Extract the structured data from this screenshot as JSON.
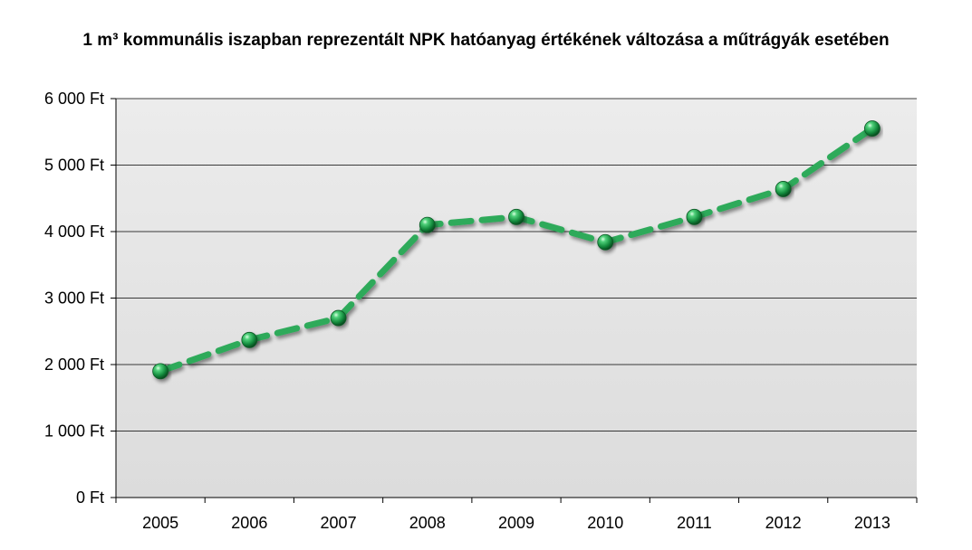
{
  "chart_data": {
    "type": "line",
    "title": "1 m³ kommunális iszapban reprezentált NPK hatóanyag értékének változása a műtrágyák esetében",
    "xlabel": "",
    "ylabel": "",
    "categories": [
      "2005",
      "2006",
      "2007",
      "2008",
      "2009",
      "2010",
      "2011",
      "2012",
      "2013"
    ],
    "series": [
      {
        "values": [
          1900,
          2370,
          2700,
          4100,
          4220,
          3840,
          4220,
          4640,
          5550
        ],
        "color": "#2daa5a",
        "line_style": "dashed",
        "marker": "sphere"
      }
    ],
    "ylim": [
      0,
      6000
    ],
    "yticks": [
      0,
      1000,
      2000,
      3000,
      4000,
      5000,
      6000
    ],
    "ytick_labels": [
      "0 Ft",
      "1 000 Ft",
      "2 000 Ft",
      "3 000 Ft",
      "4 000 Ft",
      "5 000 Ft",
      "6 000 Ft"
    ],
    "grid": true,
    "legend": "none",
    "plot_background": "#e0e0e0"
  }
}
